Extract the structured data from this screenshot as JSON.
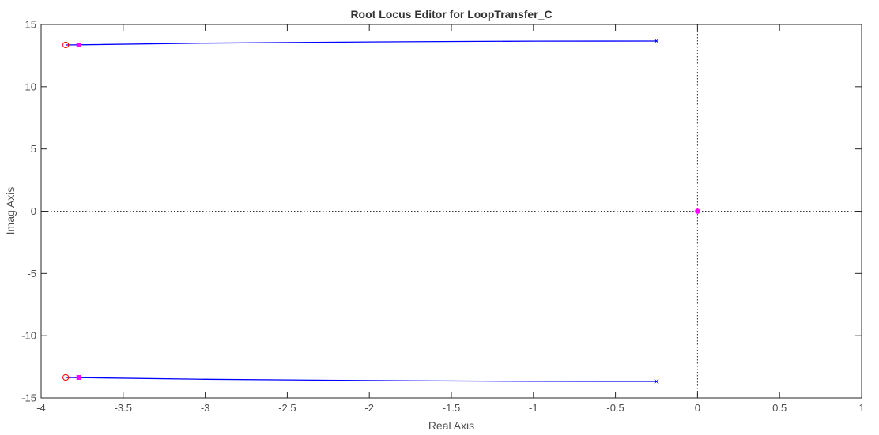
{
  "chart_data": {
    "type": "scatter",
    "title": "Root Locus Editor for LoopTransfer_C",
    "xlabel": "Real Axis",
    "ylabel": "Imag Axis",
    "xlim": [
      -4,
      1
    ],
    "ylim": [
      -15,
      15
    ],
    "x_ticks": [
      -4,
      -3.5,
      -3,
      -2.5,
      -2,
      -1.5,
      -1,
      -0.5,
      0,
      0.5,
      1
    ],
    "x_tick_labels": [
      "-4",
      "-3.5",
      "-3",
      "-2.5",
      "-2",
      "-1.5",
      "-1",
      "-0.5",
      "0",
      "0.5",
      "1"
    ],
    "y_ticks": [
      -15,
      -10,
      -5,
      0,
      5,
      10,
      15
    ],
    "y_tick_labels": [
      "-15",
      "-10",
      "-5",
      "0",
      "5",
      "10",
      "15"
    ],
    "grid": false,
    "zero_lines": true,
    "locus_branches": [
      {
        "x": [
          -0.25,
          -1.0,
          -2.0,
          -3.0,
          -3.85
        ],
        "y": [
          13.67,
          13.66,
          13.6,
          13.5,
          13.35
        ]
      },
      {
        "x": [
          -0.25,
          -1.0,
          -2.0,
          -3.0,
          -3.85
        ],
        "y": [
          -13.67,
          -13.66,
          -13.6,
          -13.5,
          -13.35
        ]
      }
    ],
    "open_loop_poles": {
      "x": [
        -0.25,
        -0.25
      ],
      "y": [
        13.67,
        -13.67
      ]
    },
    "open_loop_zeros": {
      "x": [
        -3.85,
        -3.85
      ],
      "y": [
        13.35,
        -13.35
      ]
    },
    "closed_loop_poles": {
      "x": [
        -3.77,
        -3.77,
        0
      ],
      "y": [
        13.35,
        -13.35,
        0
      ]
    },
    "colors": {
      "locus": "#0000ff",
      "pole": "#0000ff",
      "zero": "#ff0000",
      "closed_loop_pole": "#ff00ff",
      "axes": "#262626",
      "zero_line": "#333333"
    }
  }
}
